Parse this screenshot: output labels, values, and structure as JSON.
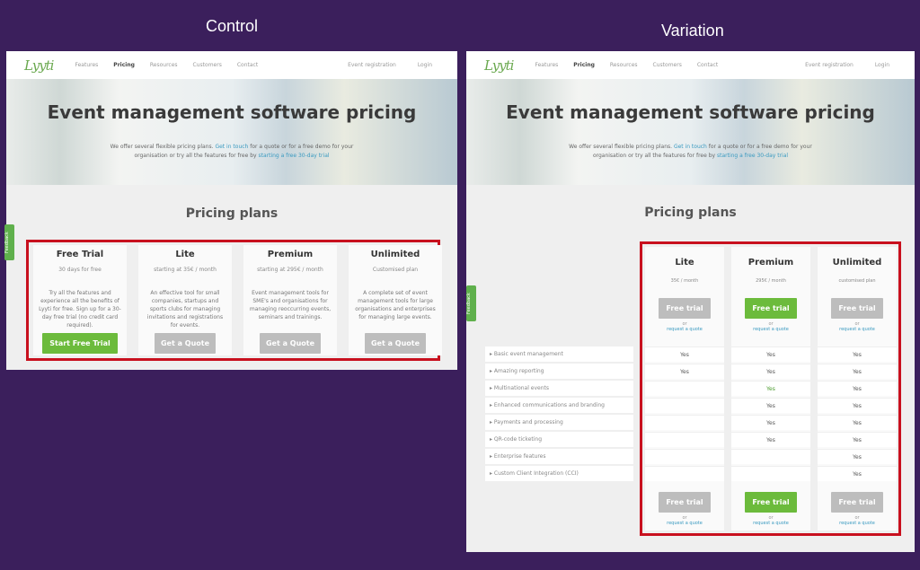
{
  "captions": {
    "control": "Control",
    "variation": "Variation"
  },
  "nav": {
    "logo": "Lyyti",
    "items": [
      "Features",
      "Pricing",
      "Resources",
      "Customers",
      "Contact"
    ],
    "right": [
      "Event registration",
      "Login"
    ]
  },
  "hero": {
    "title": "Event management software pricing",
    "text_a": "We offer several flexible pricing plans. ",
    "link1": "Get in touch",
    "text_b": " for a quote or for a free demo for your organisation or try all the features for free by ",
    "link2": "starting a free 30-day trial"
  },
  "section_title": "Pricing plans",
  "feedback_tab": "Feedback",
  "control_cards": [
    {
      "title": "Free Trial",
      "sub": "30 days for free",
      "desc": "Try all the features and experience all the benefits of Lyyti for free. Sign up for a 30-day free trial (no credit card required).",
      "button": "Start Free Trial",
      "highlight": true
    },
    {
      "title": "Lite",
      "sub": "starting at 35€ / month",
      "desc": "An effective tool for small companies, startups and sports clubs for managing invitations and registrations for events.",
      "button": "Get a Quote",
      "highlight": false
    },
    {
      "title": "Premium",
      "sub": "starting at 295€ / month",
      "desc": "Event management tools for SME's and organisations for managing reoccurring events, seminars and trainings.",
      "button": "Get a Quote",
      "highlight": false
    },
    {
      "title": "Unlimited",
      "sub": "Customised plan",
      "desc": "A complete set of event management tools for large organisations and enterprises for managing large events.",
      "button": "Get a Quote",
      "highlight": false
    }
  ],
  "variation": {
    "plans": [
      {
        "title": "Lite",
        "sub": "35€ / month",
        "button": "Free trial",
        "or": "or",
        "quote": "request a quote",
        "highlight": false
      },
      {
        "title": "Premium",
        "sub": "295€ / month",
        "button": "Free trial",
        "or": "or",
        "quote": "request a quote",
        "highlight": true
      },
      {
        "title": "Unlimited",
        "sub": "customised plan",
        "button": "Free trial",
        "or": "or",
        "quote": "request a quote",
        "highlight": false
      }
    ],
    "features": [
      "Basic event management",
      "Amazing reporting",
      "Multinational events",
      "Enhanced communications and branding",
      "Payments and processing",
      "QR-code ticketing",
      "Enterprise features",
      "Custom Client Integration (CCI)"
    ],
    "matrix": [
      [
        "Yes",
        "Yes",
        "",
        "",
        "",
        "",
        "",
        ""
      ],
      [
        "Yes",
        "Yes",
        "Yes",
        "Yes",
        "Yes",
        "Yes",
        "",
        ""
      ],
      [
        "Yes",
        "Yes",
        "Yes",
        "Yes",
        "Yes",
        "Yes",
        "Yes",
        "Yes"
      ]
    ]
  },
  "colors": {
    "background": "#3b1f5c",
    "accent_green": "#6cbb3c",
    "highlight_red": "#c8101e",
    "button_gray": "#bdbdbd"
  }
}
